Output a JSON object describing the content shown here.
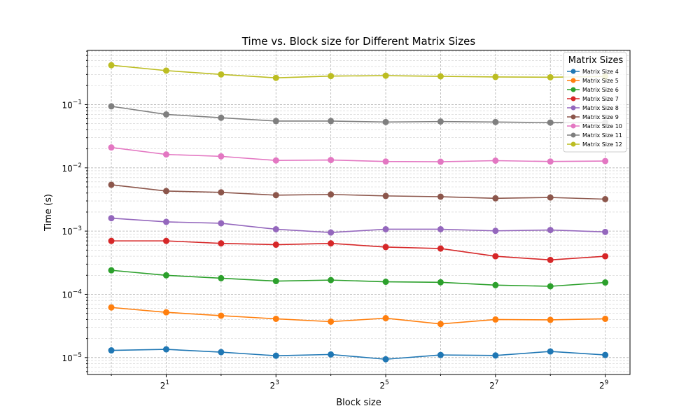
{
  "chart_data": {
    "type": "line",
    "title": "Time vs. Block size for Different Matrix Sizes",
    "xlabel": "Block size",
    "ylabel": "Time (s)",
    "x_scale": "log2",
    "y_scale": "log10",
    "x": [
      1,
      2,
      4,
      8,
      16,
      32,
      64,
      128,
      256,
      512
    ],
    "xlim": [
      0.74,
      700
    ],
    "ylim": [
      5.4e-06,
      0.72
    ],
    "x_ticks": [
      {
        "value": 2,
        "base": "2",
        "exp": "1"
      },
      {
        "value": 8,
        "base": "2",
        "exp": "3"
      },
      {
        "value": 32,
        "base": "2",
        "exp": "5"
      },
      {
        "value": 128,
        "base": "2",
        "exp": "7"
      },
      {
        "value": 512,
        "base": "2",
        "exp": "9"
      }
    ],
    "y_ticks": [
      {
        "value": 1e-05,
        "base": "10",
        "exp": "−5"
      },
      {
        "value": 0.0001,
        "base": "10",
        "exp": "−4"
      },
      {
        "value": 0.001,
        "base": "10",
        "exp": "−3"
      },
      {
        "value": 0.01,
        "base": "10",
        "exp": "−2"
      },
      {
        "value": 0.1,
        "base": "10",
        "exp": "−1"
      }
    ],
    "grid": true,
    "legend": {
      "title": "Matrix Sizes",
      "position": "top-right"
    },
    "series": [
      {
        "name": "Matrix Size 4",
        "color": "#1f77b4",
        "values": [
          1.3e-05,
          1.35e-05,
          1.22e-05,
          1.07e-05,
          1.12e-05,
          9.4e-06,
          1.1e-05,
          1.08e-05,
          1.25e-05,
          1.1e-05
        ]
      },
      {
        "name": "Matrix Size 5",
        "color": "#ff7f0e",
        "values": [
          6.2e-05,
          5.2e-05,
          4.6e-05,
          4.1e-05,
          3.7e-05,
          4.2e-05,
          3.4e-05,
          4e-05,
          3.95e-05,
          4.1e-05
        ]
      },
      {
        "name": "Matrix Size 6",
        "color": "#2ca02c",
        "values": [
          0.00024,
          0.0002,
          0.00018,
          0.000162,
          0.000168,
          0.000158,
          0.000155,
          0.00014,
          0.000134,
          0.000154
        ]
      },
      {
        "name": "Matrix Size 7",
        "color": "#d62728",
        "values": [
          0.0007,
          0.0007,
          0.00064,
          0.00061,
          0.00064,
          0.00056,
          0.00053,
          0.0004,
          0.00035,
          0.0004
        ]
      },
      {
        "name": "Matrix Size 8",
        "color": "#9467bd",
        "values": [
          0.0016,
          0.0014,
          0.00133,
          0.00107,
          0.00095,
          0.00107,
          0.00107,
          0.00101,
          0.00104,
          0.00097
        ]
      },
      {
        "name": "Matrix Size 9",
        "color": "#8c564b",
        "values": [
          0.0054,
          0.0043,
          0.0041,
          0.0037,
          0.0038,
          0.0036,
          0.0035,
          0.0033,
          0.0034,
          0.0032
        ]
      },
      {
        "name": "Matrix Size 10",
        "color": "#e377c2",
        "values": [
          0.021,
          0.0163,
          0.0152,
          0.0131,
          0.0133,
          0.0126,
          0.0125,
          0.013,
          0.0126,
          0.0128
        ]
      },
      {
        "name": "Matrix Size 11",
        "color": "#7f7f7f",
        "values": [
          0.094,
          0.07,
          0.062,
          0.055,
          0.055,
          0.053,
          0.054,
          0.053,
          0.052,
          0.052
        ]
      },
      {
        "name": "Matrix Size 12",
        "color": "#bcbd22",
        "values": [
          0.42,
          0.345,
          0.3,
          0.265,
          0.283,
          0.287,
          0.28,
          0.274,
          0.271,
          0.278
        ]
      }
    ]
  }
}
